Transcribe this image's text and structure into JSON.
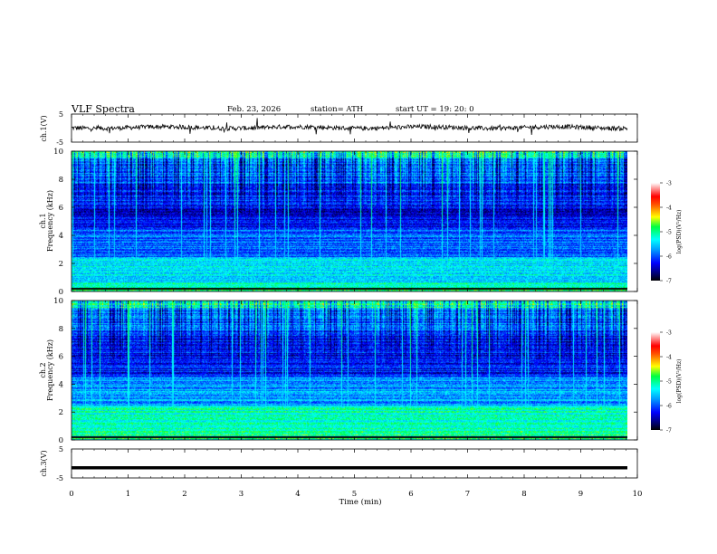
{
  "header": {
    "title": "VLF  Spectra",
    "date": "Feb. 23, 2026",
    "station": "station= ATH",
    "start": "start  UT  =    19: 20: 0"
  },
  "chart_data": [
    {
      "type": "line",
      "name": "ch1-waveform",
      "ylabel": "ch.1(V)",
      "ylim": [
        -5,
        5
      ],
      "yticks": [
        "5",
        "-5"
      ],
      "xlim": [
        0,
        10
      ],
      "description_values": "noisy waveform around 0 V with small spikes"
    },
    {
      "type": "heatmap",
      "name": "ch1-spectrogram",
      "ylabel": "ch.1",
      "ylabel2": "Frequency  (kHz)",
      "ylim": [
        0,
        10
      ],
      "yticks": [
        "0",
        "2",
        "4",
        "6",
        "8",
        "10"
      ],
      "xlim": [
        0,
        9.8
      ],
      "colorbar": {
        "label": "log(PSD)(V²/Hz)",
        "range": [
          -7,
          -3
        ],
        "ticks": [
          "-3",
          "-4",
          "-5",
          "-6",
          "-7"
        ]
      }
    },
    {
      "type": "heatmap",
      "name": "ch2-spectrogram",
      "ylabel": "ch.2",
      "ylabel2": "Frequency  (kHz)",
      "ylim": [
        0,
        10
      ],
      "yticks": [
        "0",
        "2",
        "4",
        "6",
        "8",
        "10"
      ],
      "xlim": [
        0,
        9.8
      ],
      "colorbar": {
        "label": "log(PSD)(V²/Hz)",
        "range": [
          -7,
          -3
        ],
        "ticks": [
          "-3",
          "-4",
          "-5",
          "-6",
          "-7"
        ]
      }
    },
    {
      "type": "line",
      "name": "ch3-waveform",
      "ylabel": "ch.3(V)",
      "ylim": [
        -5,
        5
      ],
      "yticks": [
        "5",
        "-5"
      ],
      "xlim": [
        0,
        10
      ],
      "level": -1.5
    }
  ],
  "x_axis": {
    "label": "Time  (min)",
    "ticks": [
      "0",
      "1",
      "2",
      "3",
      "4",
      "5",
      "6",
      "7",
      "8",
      "9",
      "10"
    ],
    "range": [
      0,
      10
    ]
  }
}
